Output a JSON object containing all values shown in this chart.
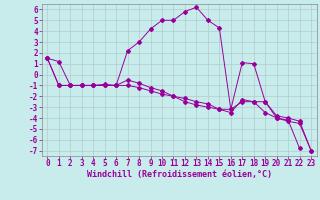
{
  "xlabel": "Windchill (Refroidissement éolien,°C)",
  "background_color": "#c8ecec",
  "line_color": "#990099",
  "grid_color": "#b0cccc",
  "xlim": [
    -0.5,
    23.5
  ],
  "ylim": [
    -7.5,
    6.5
  ],
  "xticks": [
    0,
    1,
    2,
    3,
    4,
    5,
    6,
    7,
    8,
    9,
    10,
    11,
    12,
    13,
    14,
    15,
    16,
    17,
    18,
    19,
    20,
    21,
    22,
    23
  ],
  "yticks": [
    -7,
    -6,
    -5,
    -4,
    -3,
    -2,
    -1,
    0,
    1,
    2,
    3,
    4,
    5,
    6
  ],
  "line1_x": [
    0,
    1,
    2,
    3,
    4,
    5,
    6,
    7,
    8,
    9,
    10,
    11,
    12,
    13,
    14,
    15,
    16,
    17,
    18,
    19,
    20,
    21,
    22,
    23
  ],
  "line1_y": [
    1.5,
    1.2,
    -1.0,
    -1.0,
    -1.0,
    -0.9,
    -1.0,
    2.2,
    3.0,
    4.2,
    5.0,
    5.0,
    5.8,
    6.2,
    5.0,
    4.3,
    -3.2,
    1.1,
    1.0,
    -2.5,
    -4.0,
    -4.2,
    -6.8,
    null
  ],
  "line2_x": [
    0,
    1,
    2,
    3,
    4,
    5,
    6,
    7,
    8,
    9,
    10,
    11,
    12,
    13,
    14,
    15,
    16,
    17,
    18,
    19,
    20,
    21,
    22,
    23
  ],
  "line2_y": [
    1.5,
    -1.0,
    -1.0,
    -1.0,
    -1.0,
    -1.0,
    -1.0,
    -1.0,
    -1.2,
    -1.5,
    -1.8,
    -2.0,
    -2.2,
    -2.5,
    -2.7,
    -3.2,
    -3.2,
    -2.5,
    -2.5,
    -3.5,
    -4.0,
    -4.3,
    -4.5,
    -7.0
  ],
  "line3_x": [
    0,
    1,
    2,
    3,
    4,
    5,
    6,
    7,
    8,
    9,
    10,
    11,
    12,
    13,
    14,
    15,
    16,
    17,
    18,
    19,
    20,
    21,
    22,
    23
  ],
  "line3_y": [
    1.5,
    -1.0,
    -1.0,
    -1.0,
    -1.0,
    -1.0,
    -1.0,
    -0.5,
    -0.8,
    -1.2,
    -1.5,
    -2.0,
    -2.5,
    -2.8,
    -3.0,
    -3.2,
    -3.5,
    -2.3,
    -2.5,
    -2.5,
    -3.8,
    -4.0,
    -4.3,
    -7.0
  ],
  "tick_fontsize": 5.5,
  "xlabel_fontsize": 6.0
}
